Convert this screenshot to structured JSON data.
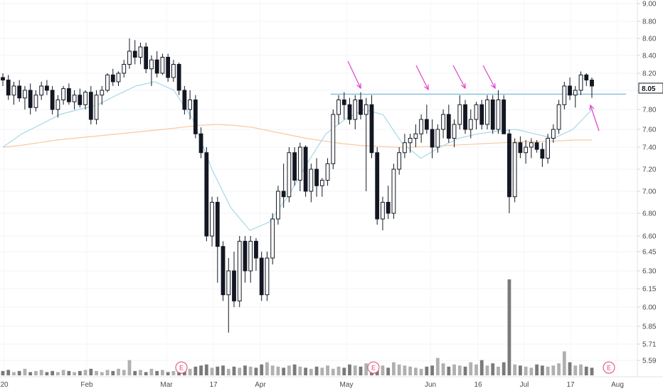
{
  "chart_data": {
    "type": "candlestick",
    "x_labels": [
      "20",
      "Feb",
      "Mar",
      "17",
      "Apr",
      "May",
      "Jun",
      "16",
      "Jul",
      "17",
      "Aug"
    ],
    "y_ticks": [
      5.59,
      5.71,
      5.85,
      6.0,
      6.15,
      6.3,
      6.45,
      6.6,
      6.8,
      7.0,
      7.2,
      7.4,
      7.6,
      7.8,
      8.0,
      8.2,
      8.4,
      8.6,
      8.8,
      9.0
    ],
    "y_tick_labels": [
      "5.59",
      "5.71",
      "5.85",
      "6.00",
      "6.15",
      "6.30",
      "6.45",
      "6.60",
      "6.80",
      "7.00",
      "7.20",
      "7.40",
      "7.60",
      "7.80",
      "8.00",
      "8.20",
      "8.40",
      "8.60",
      "8.80",
      "9.00"
    ],
    "last_price": "8.05",
    "resistance_level": 7.96,
    "earnings_marker": "E",
    "earnings_label_indexes": [
      0,
      1,
      2
    ],
    "colors": {
      "up_candle": "#ffffff",
      "down_candle": "#131722",
      "short_ma": "#a8d8e6",
      "long_ma": "#f7c9a0",
      "resistance_line": "#5aa9c8",
      "arrows": "#e040c8",
      "earnings": "#e0476a",
      "volume": "#b0b0b0",
      "volume_dark": "#7a7a7a"
    },
    "ohlc": [
      [
        8.15,
        8.2,
        8.05,
        8.12
      ],
      [
        8.12,
        8.18,
        7.9,
        7.95
      ],
      [
        7.95,
        8.1,
        7.85,
        8.05
      ],
      [
        8.05,
        8.12,
        7.88,
        7.92
      ],
      [
        7.92,
        8.05,
        7.8,
        8.0
      ],
      [
        8.0,
        8.08,
        7.75,
        7.82
      ],
      [
        7.82,
        8.0,
        7.78,
        7.95
      ],
      [
        7.95,
        8.1,
        7.9,
        8.05
      ],
      [
        8.05,
        8.12,
        7.95,
        8.0
      ],
      [
        8.0,
        8.05,
        7.75,
        7.8
      ],
      [
        7.8,
        7.95,
        7.72,
        7.9
      ],
      [
        7.9,
        8.05,
        7.85,
        8.02
      ],
      [
        8.02,
        8.08,
        7.85,
        7.88
      ],
      [
        7.88,
        8.0,
        7.8,
        7.95
      ],
      [
        7.95,
        8.02,
        7.82,
        7.85
      ],
      [
        7.85,
        8.0,
        7.8,
        7.98
      ],
      [
        7.98,
        8.05,
        7.65,
        7.7
      ],
      [
        7.7,
        8.0,
        7.65,
        7.95
      ],
      [
        7.95,
        8.05,
        7.85,
        8.0
      ],
      [
        8.0,
        8.2,
        7.98,
        8.18
      ],
      [
        8.18,
        8.25,
        8.05,
        8.1
      ],
      [
        8.1,
        8.22,
        8.05,
        8.2
      ],
      [
        8.2,
        8.35,
        8.15,
        8.3
      ],
      [
        8.3,
        8.6,
        8.25,
        8.45
      ],
      [
        8.45,
        8.58,
        8.3,
        8.38
      ],
      [
        8.38,
        8.55,
        8.3,
        8.5
      ],
      [
        8.5,
        8.55,
        8.2,
        8.25
      ],
      [
        8.25,
        8.4,
        8.05,
        8.35
      ],
      [
        8.35,
        8.45,
        8.15,
        8.2
      ],
      [
        8.2,
        8.42,
        8.18,
        8.38
      ],
      [
        8.38,
        8.42,
        8.1,
        8.15
      ],
      [
        8.15,
        8.35,
        8.1,
        8.3
      ],
      [
        8.3,
        8.32,
        7.95,
        8.0
      ],
      [
        8.0,
        8.05,
        7.75,
        7.8
      ],
      [
        7.8,
        8.0,
        7.7,
        7.9
      ],
      [
        7.9,
        7.95,
        7.5,
        7.55
      ],
      [
        7.55,
        7.62,
        7.3,
        7.35
      ],
      [
        7.35,
        7.4,
        6.55,
        6.6
      ],
      [
        6.6,
        6.95,
        6.5,
        6.9
      ],
      [
        6.9,
        6.95,
        6.2,
        6.5
      ],
      [
        6.5,
        6.55,
        6.05,
        6.1
      ],
      [
        6.1,
        6.4,
        5.8,
        6.3
      ],
      [
        6.3,
        6.45,
        6.0,
        6.05
      ],
      [
        6.05,
        6.6,
        6.0,
        6.55
      ],
      [
        6.55,
        6.6,
        6.2,
        6.3
      ],
      [
        6.3,
        6.6,
        6.2,
        6.55
      ],
      [
        6.55,
        6.58,
        6.3,
        6.4
      ],
      [
        6.4,
        6.45,
        6.05,
        6.1
      ],
      [
        6.1,
        6.45,
        6.05,
        6.4
      ],
      [
        6.4,
        6.8,
        6.35,
        6.75
      ],
      [
        6.75,
        7.05,
        6.7,
        7.0
      ],
      [
        7.0,
        7.25,
        6.85,
        6.95
      ],
      [
        6.95,
        7.4,
        6.9,
        7.35
      ],
      [
        7.35,
        7.4,
        7.05,
        7.1
      ],
      [
        7.1,
        7.45,
        7.0,
        7.4
      ],
      [
        7.4,
        7.42,
        6.95,
        7.0
      ],
      [
        7.0,
        7.25,
        6.9,
        7.2
      ],
      [
        7.2,
        7.3,
        6.95,
        7.05
      ],
      [
        7.05,
        7.12,
        6.95,
        7.1
      ],
      [
        7.1,
        7.3,
        7.05,
        7.25
      ],
      [
        7.25,
        7.8,
        7.2,
        7.75
      ],
      [
        7.75,
        7.95,
        7.65,
        7.9
      ],
      [
        7.9,
        7.98,
        7.7,
        7.85
      ],
      [
        7.85,
        7.92,
        7.65,
        7.7
      ],
      [
        7.7,
        7.95,
        7.6,
        7.9
      ],
      [
        7.9,
        7.98,
        7.7,
        7.75
      ],
      [
        7.75,
        7.92,
        7.0,
        7.85
      ],
      [
        7.85,
        7.95,
        7.3,
        7.35
      ],
      [
        7.35,
        7.4,
        6.7,
        6.75
      ],
      [
        6.75,
        6.95,
        6.65,
        6.9
      ],
      [
        6.9,
        7.05,
        6.75,
        6.8
      ],
      [
        6.8,
        7.25,
        6.75,
        7.2
      ],
      [
        7.2,
        7.4,
        7.15,
        7.35
      ],
      [
        7.35,
        7.55,
        7.3,
        7.45
      ],
      [
        7.45,
        7.55,
        7.35,
        7.5
      ],
      [
        7.5,
        7.65,
        7.4,
        7.55
      ],
      [
        7.55,
        7.75,
        7.45,
        7.7
      ],
      [
        7.7,
        7.85,
        7.55,
        7.6
      ],
      [
        7.6,
        7.7,
        7.3,
        7.4
      ],
      [
        7.4,
        7.65,
        7.35,
        7.6
      ],
      [
        7.6,
        7.8,
        7.5,
        7.75
      ],
      [
        7.75,
        7.85,
        7.45,
        7.5
      ],
      [
        7.5,
        7.7,
        7.4,
        7.65
      ],
      [
        7.65,
        7.95,
        7.6,
        7.85
      ],
      [
        7.85,
        7.9,
        7.55,
        7.6
      ],
      [
        7.6,
        7.8,
        7.5,
        7.7
      ],
      [
        7.7,
        7.88,
        7.6,
        7.85
      ],
      [
        7.85,
        7.9,
        7.6,
        7.65
      ],
      [
        7.65,
        7.95,
        7.6,
        7.9
      ],
      [
        7.9,
        7.95,
        7.55,
        7.6
      ],
      [
        7.6,
        8.0,
        7.55,
        7.9
      ],
      [
        7.9,
        7.95,
        7.55,
        7.55
      ],
      [
        7.55,
        7.6,
        6.8,
        6.95
      ],
      [
        6.95,
        7.5,
        6.9,
        7.45
      ],
      [
        7.45,
        7.52,
        7.3,
        7.35
      ],
      [
        7.35,
        7.48,
        7.25,
        7.4
      ],
      [
        7.4,
        7.5,
        7.3,
        7.45
      ],
      [
        7.45,
        7.48,
        7.35,
        7.38
      ],
      [
        7.38,
        7.45,
        7.22,
        7.3
      ],
      [
        7.3,
        7.55,
        7.25,
        7.5
      ],
      [
        7.5,
        7.65,
        7.45,
        7.6
      ],
      [
        7.6,
        7.9,
        7.55,
        7.85
      ],
      [
        7.85,
        8.1,
        7.8,
        8.05
      ],
      [
        8.05,
        8.15,
        7.9,
        7.95
      ],
      [
        7.95,
        8.05,
        7.82,
        8.0
      ],
      [
        8.0,
        8.22,
        7.95,
        8.18
      ],
      [
        8.18,
        8.2,
        8.05,
        8.12
      ],
      [
        8.12,
        8.15,
        7.92,
        8.05
      ]
    ],
    "volume": [
      4,
      5,
      3,
      4,
      6,
      3,
      4,
      5,
      3,
      4,
      3,
      5,
      4,
      3,
      4,
      5,
      6,
      4,
      3,
      5,
      4,
      6,
      5,
      14,
      4,
      5,
      3,
      6,
      4,
      5,
      3,
      4,
      5,
      7,
      6,
      8,
      9,
      10,
      7,
      8,
      9,
      6,
      8,
      7,
      9,
      8,
      7,
      10,
      12,
      9,
      8,
      7,
      9,
      10,
      8,
      7,
      6,
      8,
      7,
      9,
      6,
      8,
      7,
      10,
      9,
      8,
      11,
      10,
      8,
      9,
      7,
      12,
      10,
      9,
      8,
      7,
      6,
      8,
      9,
      16,
      11,
      8,
      10,
      9,
      8,
      12,
      10,
      14,
      9,
      11,
      8,
      12,
      88,
      10,
      9,
      8,
      7,
      10,
      9,
      8,
      9,
      11,
      22,
      12,
      9,
      10,
      8,
      7
    ],
    "long_ma": [
      7.4,
      7.42,
      7.45,
      7.48,
      7.5,
      7.52,
      7.54,
      7.56,
      7.58,
      7.6,
      7.62,
      7.64,
      7.65,
      7.64,
      7.62,
      7.58,
      7.54,
      7.5,
      7.47,
      7.44,
      7.42,
      7.41,
      7.4,
      7.4,
      7.41,
      7.42,
      7.43,
      7.44,
      7.45,
      7.46,
      7.46,
      7.47,
      7.48,
      7.48
    ],
    "short_ma": [
      7.4,
      7.55,
      7.65,
      7.75,
      7.8,
      7.85,
      7.95,
      8.05,
      8.1,
      8.0,
      7.7,
      7.2,
      6.85,
      6.65,
      6.72,
      6.95,
      7.25,
      7.55,
      7.7,
      7.8,
      7.75,
      7.45,
      7.3,
      7.4,
      7.5,
      7.55,
      7.58,
      7.6,
      7.55,
      7.5,
      7.6,
      7.8
    ]
  }
}
